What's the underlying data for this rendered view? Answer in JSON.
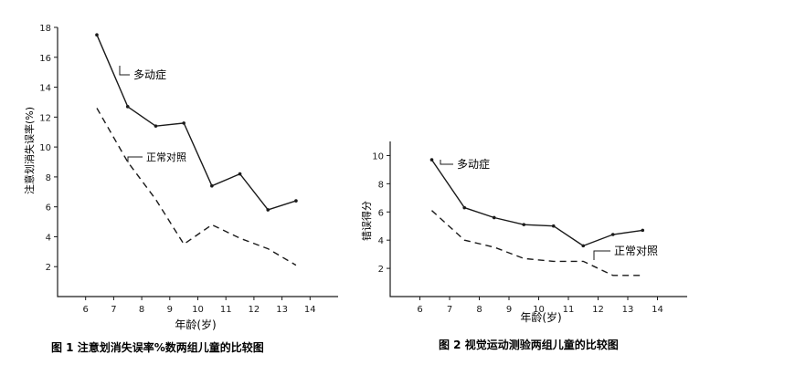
{
  "colors": {
    "ink": "#1a1a1a",
    "paper": "#ffffff"
  },
  "chart_data": [
    {
      "type": "line",
      "title": "图 1  注意划消失误率%数两组儿童的比较图",
      "xlabel": "年龄(岁)",
      "ylabel": "注意划消失误率(%)",
      "xlim": [
        5,
        15
      ],
      "ylim": [
        0,
        18
      ],
      "x_ticks": [
        6,
        7,
        8,
        9,
        10,
        11,
        12,
        13,
        14
      ],
      "y_ticks": [
        2,
        4,
        6,
        8,
        10,
        12,
        14,
        16,
        18
      ],
      "grid": false,
      "legend": "inline labels",
      "series": [
        {
          "name": "多动症",
          "style": "solid",
          "x": [
            6.4,
            7.5,
            8.5,
            9.5,
            10.5,
            11.5,
            12.5,
            13.5
          ],
          "y": [
            17.5,
            12.7,
            11.4,
            11.6,
            7.4,
            8.2,
            5.8,
            6.4
          ]
        },
        {
          "name": "正常对照",
          "style": "dashed",
          "x": [
            6.4,
            7.5,
            8.5,
            9.5,
            10.5,
            11.5,
            12.5,
            13.5
          ],
          "y": [
            12.6,
            9.0,
            6.5,
            3.5,
            4.8,
            3.9,
            3.2,
            2.1
          ]
        }
      ]
    },
    {
      "type": "line",
      "title": "图 2  视觉运动测验两组儿童的比较图",
      "xlabel": "年龄(岁)",
      "ylabel": "错误得分",
      "xlim": [
        5,
        15
      ],
      "ylim": [
        0,
        11
      ],
      "x_ticks": [
        6,
        7,
        8,
        9,
        10,
        11,
        12,
        13,
        14
      ],
      "y_ticks": [
        2,
        4,
        6,
        8,
        10
      ],
      "grid": false,
      "legend": "inline labels",
      "series": [
        {
          "name": "多动症",
          "style": "solid",
          "x": [
            6.4,
            7.5,
            8.5,
            9.5,
            10.5,
            11.5,
            12.5,
            13.5
          ],
          "y": [
            9.7,
            6.3,
            5.6,
            5.1,
            5.0,
            3.6,
            4.4,
            4.7
          ]
        },
        {
          "name": "正常对照",
          "style": "dashed",
          "x": [
            6.4,
            7.5,
            8.5,
            9.5,
            10.5,
            11.5,
            12.5,
            13.5
          ],
          "y": [
            6.1,
            4.0,
            3.5,
            2.7,
            2.5,
            2.5,
            1.5,
            1.5
          ]
        }
      ]
    }
  ]
}
